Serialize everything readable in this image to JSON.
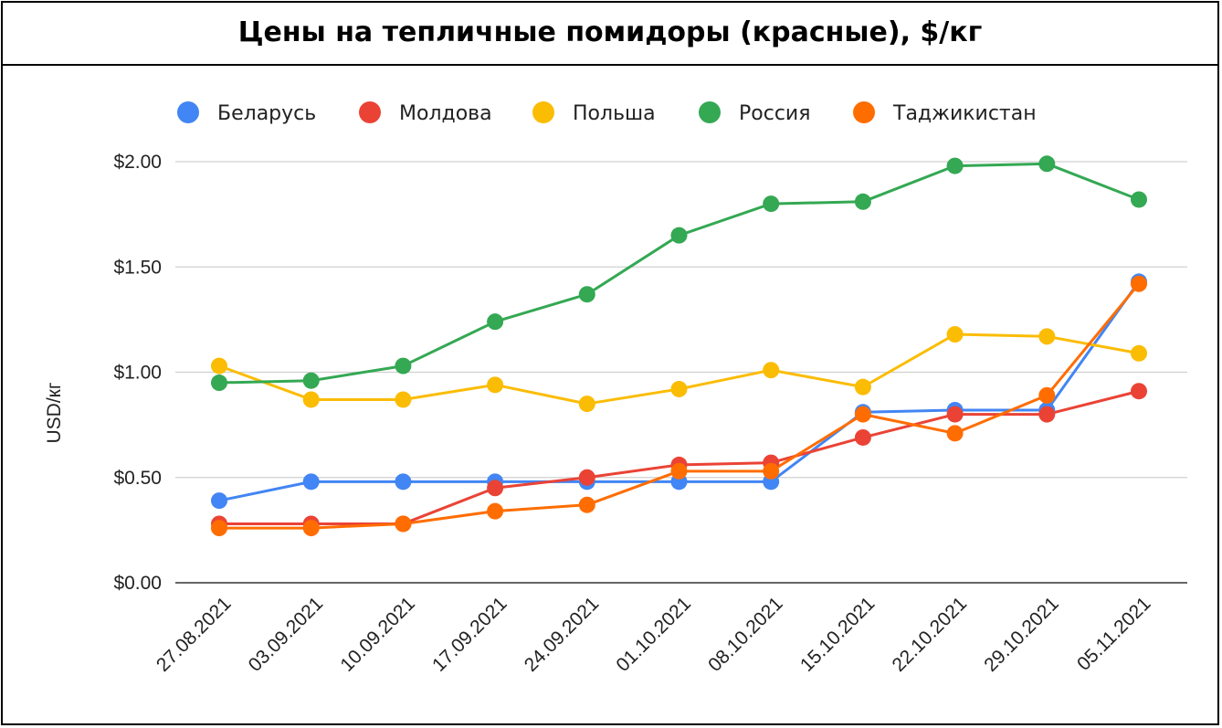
{
  "chart_data": {
    "type": "line",
    "title": "Цены на тепличные помидоры (красные), $/кг",
    "ylabel": "USD/кг",
    "xlabel": "",
    "ylim": [
      0,
      2.0
    ],
    "yticks": [
      "$0.00",
      "$0.50",
      "$1.00",
      "$1.50",
      "$2.00"
    ],
    "grid": true,
    "legend_position": "top",
    "categories": [
      "27.08.2021",
      "03.09.2021",
      "10.09.2021",
      "17.09.2021",
      "24.09.2021",
      "01.10.2021",
      "08.10.2021",
      "15.10.2021",
      "22.10.2021",
      "29.10.2021",
      "05.11.2021"
    ],
    "series": [
      {
        "name": "Беларусь",
        "color": "#4285f4",
        "values": [
          0.39,
          0.48,
          0.48,
          0.48,
          0.48,
          0.48,
          0.48,
          0.81,
          0.82,
          0.82,
          1.43
        ]
      },
      {
        "name": "Молдова",
        "color": "#ea4335",
        "values": [
          0.28,
          0.28,
          0.28,
          0.45,
          0.5,
          0.56,
          0.57,
          0.69,
          0.8,
          0.8,
          0.91
        ]
      },
      {
        "name": "Польша",
        "color": "#fbbc04",
        "values": [
          1.03,
          0.87,
          0.87,
          0.94,
          0.85,
          0.92,
          1.01,
          0.93,
          1.18,
          1.17,
          1.09
        ]
      },
      {
        "name": "Россия",
        "color": "#34a853",
        "values": [
          0.95,
          0.96,
          1.03,
          1.24,
          1.37,
          1.65,
          1.8,
          1.81,
          1.98,
          1.99,
          1.82
        ]
      },
      {
        "name": "Таджикистан",
        "color": "#ff6d01",
        "values": [
          0.26,
          0.26,
          0.28,
          0.34,
          0.37,
          0.53,
          0.53,
          0.8,
          0.71,
          0.89,
          1.42
        ]
      }
    ]
  }
}
